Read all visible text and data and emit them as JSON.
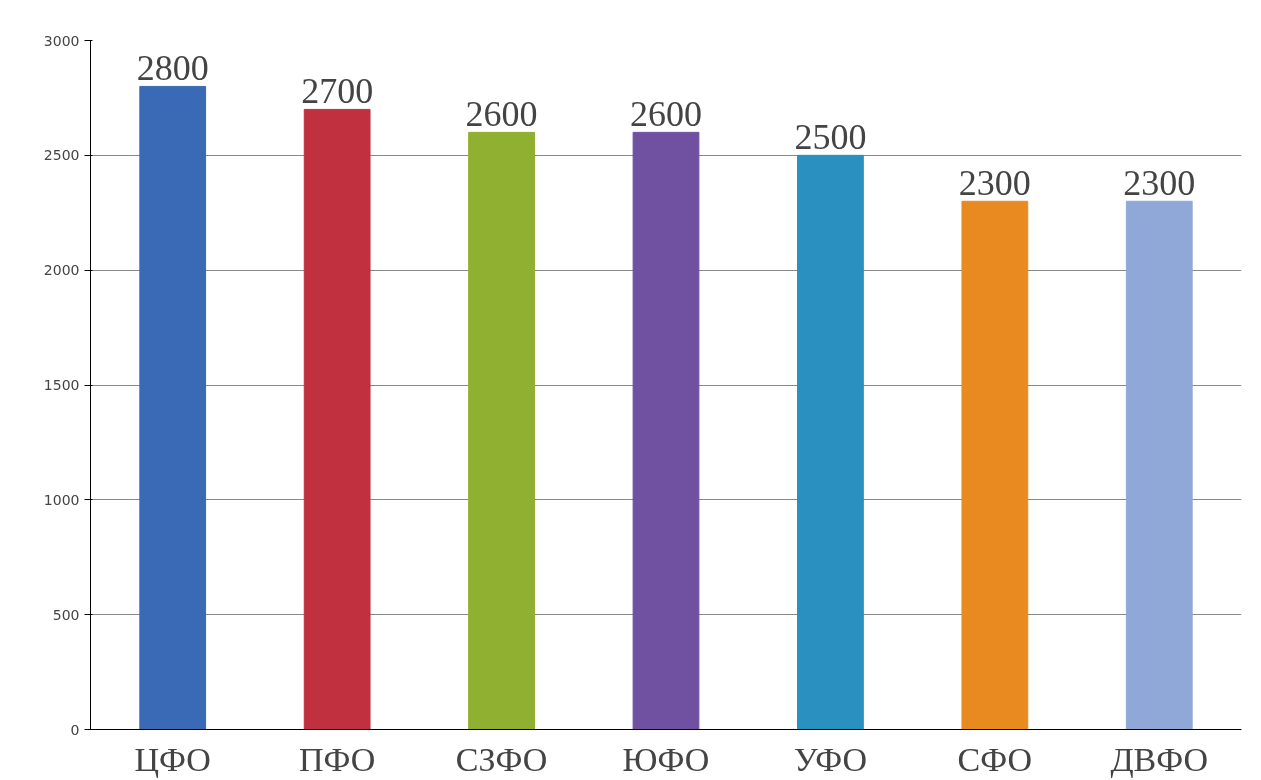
{
  "chart_data": {
    "type": "bar",
    "categories": [
      "ЦФО",
      "ПФО",
      "СЗФО",
      "ЮФО",
      "УФО",
      "СФО",
      "ДВФО"
    ],
    "values": [
      2800,
      2700,
      2600,
      2600,
      2500,
      2300,
      2300
    ],
    "colors": [
      "#3a6ab5",
      "#c0303f",
      "#8fb030",
      "#7050a0",
      "#2a90c0",
      "#e88a20",
      "#90a8d8"
    ],
    "ylim": [
      0,
      3000
    ],
    "yticks": [
      0,
      500,
      1000,
      1500,
      2000,
      2500,
      3000
    ],
    "grid": "y",
    "data_labels": true
  }
}
